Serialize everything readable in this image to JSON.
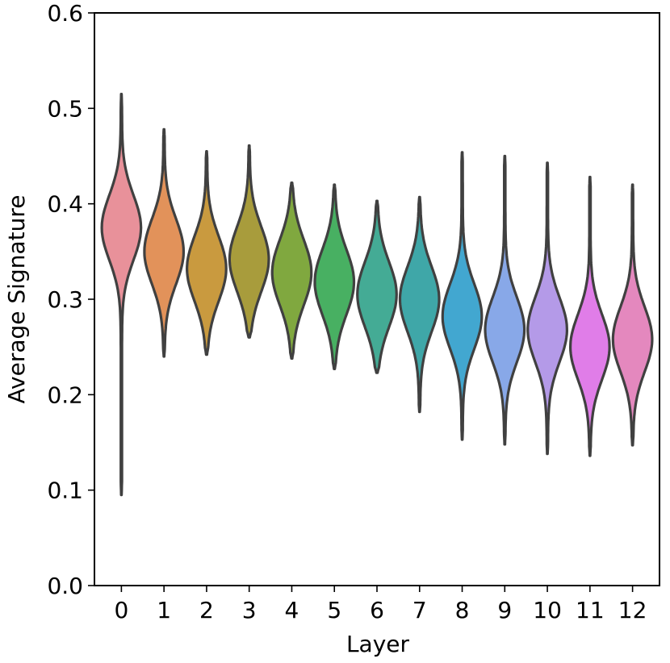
{
  "chart_data": {
    "type": "violin",
    "xlabel": "Layer",
    "ylabel": "Average Signature",
    "ylim": [
      0.0,
      0.6
    ],
    "yticks": [
      "0.0",
      "0.1",
      "0.2",
      "0.3",
      "0.4",
      "0.5",
      "0.6"
    ],
    "grid": false,
    "categories": [
      "0",
      "1",
      "2",
      "3",
      "4",
      "5",
      "6",
      "7",
      "8",
      "9",
      "10",
      "11",
      "12"
    ],
    "colors": [
      "#e8919a",
      "#e2925a",
      "#c99a3f",
      "#a89c3c",
      "#80a83f",
      "#48b062",
      "#44ab95",
      "#3fa7a8",
      "#42a7d0",
      "#88a8e8",
      "#b49ae8",
      "#e07de8",
      "#e488be"
    ],
    "series": [
      {
        "layer": "0",
        "min": 0.095,
        "max": 0.515,
        "median": 0.375
      },
      {
        "layer": "1",
        "min": 0.24,
        "max": 0.478,
        "median": 0.35
      },
      {
        "layer": "2",
        "min": 0.242,
        "max": 0.455,
        "median": 0.332
      },
      {
        "layer": "3",
        "min": 0.26,
        "max": 0.461,
        "median": 0.342
      },
      {
        "layer": "4",
        "min": 0.238,
        "max": 0.422,
        "median": 0.328
      },
      {
        "layer": "5",
        "min": 0.227,
        "max": 0.42,
        "median": 0.318
      },
      {
        "layer": "6",
        "min": 0.223,
        "max": 0.403,
        "median": 0.305
      },
      {
        "layer": "7",
        "min": 0.182,
        "max": 0.407,
        "median": 0.3
      },
      {
        "layer": "8",
        "min": 0.153,
        "max": 0.454,
        "median": 0.282
      },
      {
        "layer": "9",
        "min": 0.148,
        "max": 0.45,
        "median": 0.268
      },
      {
        "layer": "10",
        "min": 0.138,
        "max": 0.443,
        "median": 0.268
      },
      {
        "layer": "11",
        "min": 0.136,
        "max": 0.428,
        "median": 0.25
      },
      {
        "layer": "12",
        "min": 0.147,
        "max": 0.42,
        "median": 0.258
      }
    ]
  }
}
